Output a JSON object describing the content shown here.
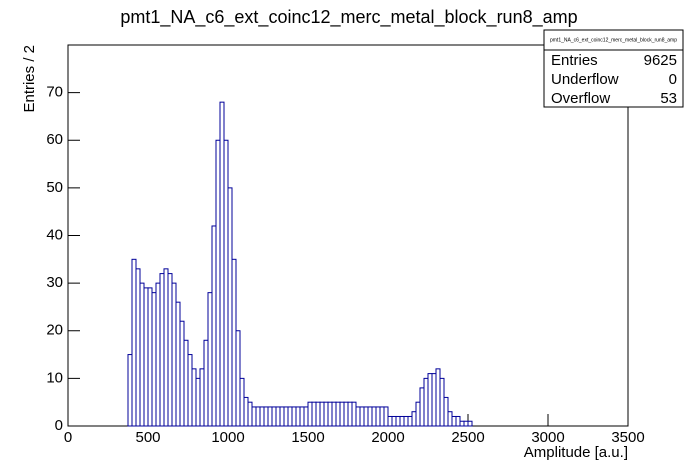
{
  "chart_data": {
    "type": "histogram",
    "title": "pmt1_NA_c6_ext_coinc12_merc_metal_block_run8_amp",
    "x_label": "Amplitude [a.u.]",
    "y_label": "Entries / 2",
    "color": "#000099",
    "xlim": [
      0,
      3500
    ],
    "ylim": [
      0,
      80
    ],
    "xticks": [
      0,
      500,
      1000,
      1500,
      2000,
      2500,
      3000,
      3500
    ],
    "yticks": [
      0,
      10,
      20,
      30,
      40,
      50,
      60,
      70
    ],
    "bins": [
      0,
      25,
      50,
      75,
      100,
      125,
      150,
      175,
      200,
      225,
      250,
      275,
      300,
      325,
      350,
      375,
      400,
      425,
      450,
      475,
      500,
      525,
      550,
      575,
      600,
      625,
      650,
      675,
      700,
      725,
      750,
      775,
      800,
      825,
      850,
      875,
      900,
      925,
      950,
      975,
      1000,
      1025,
      1050,
      1075,
      1100,
      1125,
      1150,
      1175,
      1200,
      1225,
      1250,
      1275,
      1300,
      1325,
      1350,
      1375,
      1400,
      1425,
      1450,
      1475,
      1500,
      1525,
      1550,
      1575,
      1600,
      1625,
      1650,
      1675,
      1700,
      1725,
      1750,
      1775,
      1800,
      1825,
      1850,
      1875,
      1900,
      1925,
      1950,
      1975,
      2000,
      2025,
      2050,
      2075,
      2100,
      2125,
      2150,
      2175,
      2200,
      2225,
      2250,
      2275,
      2300,
      2325,
      2350,
      2375,
      2400,
      2425,
      2450,
      2475,
      2500,
      2525,
      2550,
      2575,
      2600,
      2625,
      2650,
      2675,
      2700,
      2725,
      2750,
      2775,
      2800,
      2825,
      2850,
      2875,
      2900,
      2925,
      2950,
      2975,
      3000,
      3025,
      3050,
      3075,
      3100,
      3125,
      3150,
      3175,
      3200,
      3225,
      3250,
      3275,
      3300,
      3325,
      3350,
      3375,
      3400,
      3425,
      3450,
      3475,
      3500
    ],
    "values": [
      0,
      0,
      0,
      0,
      0,
      0,
      0,
      0,
      0,
      0,
      0,
      0,
      0,
      0,
      0,
      15,
      35,
      33,
      30,
      29,
      29,
      28,
      30,
      32,
      33,
      32,
      30,
      26,
      22,
      18,
      15,
      12,
      10,
      12,
      18,
      28,
      42,
      60,
      68,
      60,
      50,
      35,
      20,
      10,
      6,
      5,
      4,
      4,
      4,
      4,
      4,
      4,
      4,
      4,
      4,
      4,
      4,
      4,
      4,
      4,
      5,
      5,
      5,
      5,
      5,
      5,
      5,
      5,
      5,
      5,
      5,
      5,
      4,
      4,
      4,
      4,
      4,
      4,
      4,
      4,
      2,
      2,
      2,
      2,
      2,
      2,
      3,
      5,
      8,
      10,
      11,
      11,
      12,
      10,
      6,
      3,
      2,
      2,
      1,
      1,
      1,
      0,
      0,
      0,
      0,
      0,
      0,
      0,
      0,
      0,
      0,
      0,
      0,
      0,
      0,
      0,
      0,
      0,
      0,
      0,
      0,
      0,
      0,
      0,
      0,
      0,
      0,
      0,
      0,
      0,
      0,
      0,
      0,
      0,
      0,
      0,
      0,
      0,
      0,
      0
    ],
    "stats": {
      "title": "pmt1_NA_c6_ext_coinc12_merc_metal_block_run8_amp",
      "rows": [
        [
          "Entries",
          9625
        ],
        [
          "Underflow",
          0
        ],
        [
          "Overflow",
          53
        ]
      ]
    }
  }
}
